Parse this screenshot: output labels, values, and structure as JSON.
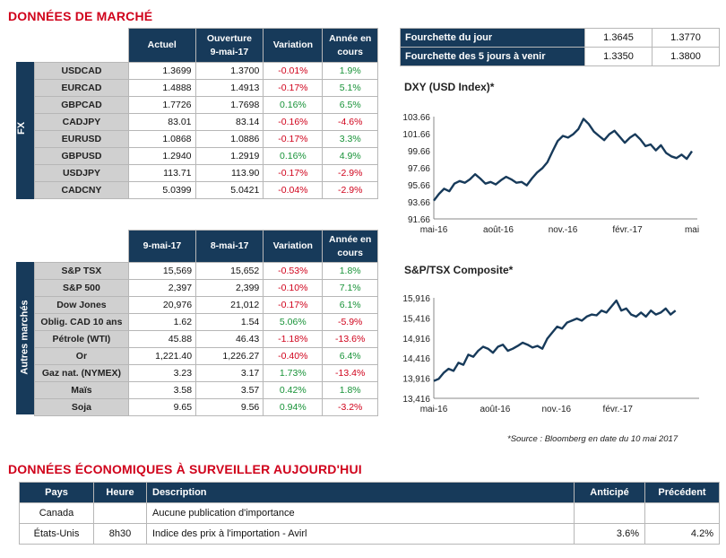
{
  "title_market": "DONNÉES DE MARCHÉ",
  "fx": {
    "side_label": "FX",
    "headers": [
      "Actuel",
      "Ouverture\n9-mai-17",
      "Variation",
      "Année en\ncours"
    ],
    "rows": [
      {
        "name": "USDCAD",
        "a": "1.3699",
        "b": "1.3700",
        "var": "-0.01%",
        "ytd": "1.9%",
        "var_sign": "neg",
        "ytd_sign": "pos"
      },
      {
        "name": "EURCAD",
        "a": "1.4888",
        "b": "1.4913",
        "var": "-0.17%",
        "ytd": "5.1%",
        "var_sign": "neg",
        "ytd_sign": "pos"
      },
      {
        "name": "GBPCAD",
        "a": "1.7726",
        "b": "1.7698",
        "var": "0.16%",
        "ytd": "6.5%",
        "var_sign": "pos",
        "ytd_sign": "pos"
      },
      {
        "name": "CADJPY",
        "a": "83.01",
        "b": "83.14",
        "var": "-0.16%",
        "ytd": "-4.6%",
        "var_sign": "neg",
        "ytd_sign": "neg"
      },
      {
        "name": "EURUSD",
        "a": "1.0868",
        "b": "1.0886",
        "var": "-0.17%",
        "ytd": "3.3%",
        "var_sign": "neg",
        "ytd_sign": "pos"
      },
      {
        "name": "GBPUSD",
        "a": "1.2940",
        "b": "1.2919",
        "var": "0.16%",
        "ytd": "4.9%",
        "var_sign": "pos",
        "ytd_sign": "pos"
      },
      {
        "name": "USDJPY",
        "a": "113.71",
        "b": "113.90",
        "var": "-0.17%",
        "ytd": "-2.9%",
        "var_sign": "neg",
        "ytd_sign": "neg"
      },
      {
        "name": "CADCNY",
        "a": "5.0399",
        "b": "5.0421",
        "var": "-0.04%",
        "ytd": "-2.9%",
        "var_sign": "neg",
        "ytd_sign": "neg"
      }
    ]
  },
  "other": {
    "side_label": "Autres marchés",
    "headers": [
      "9-mai-17",
      "8-mai-17",
      "Variation",
      "Année en\ncours"
    ],
    "rows": [
      {
        "name": "S&P TSX",
        "a": "15,569",
        "b": "15,652",
        "var": "-0.53%",
        "ytd": "1.8%",
        "var_sign": "neg",
        "ytd_sign": "pos"
      },
      {
        "name": "S&P 500",
        "a": "2,397",
        "b": "2,399",
        "var": "-0.10%",
        "ytd": "7.1%",
        "var_sign": "neg",
        "ytd_sign": "pos"
      },
      {
        "name": "Dow Jones",
        "a": "20,976",
        "b": "21,012",
        "var": "-0.17%",
        "ytd": "6.1%",
        "var_sign": "neg",
        "ytd_sign": "pos"
      },
      {
        "name": "Oblig. CAD 10 ans",
        "a": "1.62",
        "b": "1.54",
        "var": "5.06%",
        "ytd": "-5.9%",
        "var_sign": "pos",
        "ytd_sign": "neg"
      },
      {
        "name": "Pétrole (WTI)",
        "a": "45.88",
        "b": "46.43",
        "var": "-1.18%",
        "ytd": "-13.6%",
        "var_sign": "neg",
        "ytd_sign": "neg"
      },
      {
        "name": "Or",
        "a": "1,221.40",
        "b": "1,226.27",
        "var": "-0.40%",
        "ytd": "6.4%",
        "var_sign": "neg",
        "ytd_sign": "pos"
      },
      {
        "name": "Gaz nat. (NYMEX)",
        "a": "3.23",
        "b": "3.17",
        "var": "1.73%",
        "ytd": "-13.4%",
        "var_sign": "pos",
        "ytd_sign": "neg"
      },
      {
        "name": "Maïs",
        "a": "3.58",
        "b": "3.57",
        "var": "0.42%",
        "ytd": "1.8%",
        "var_sign": "pos",
        "ytd_sign": "pos"
      },
      {
        "name": "Soja",
        "a": "9.65",
        "b": "9.56",
        "var": "0.94%",
        "ytd": "-3.2%",
        "var_sign": "pos",
        "ytd_sign": "neg"
      }
    ]
  },
  "range": {
    "rows": [
      {
        "label": "Fourchette du jour",
        "low": "1.3645",
        "high": "1.3770"
      },
      {
        "label": "Fourchette des 5 jours à venir",
        "low": "1.3350",
        "high": "1.3800"
      }
    ]
  },
  "chart_data": [
    {
      "type": "line",
      "title": "DXY (USD Index)*",
      "yticks": [
        "103.66",
        "101.66",
        "99.66",
        "97.66",
        "95.66",
        "93.66",
        "91.66"
      ],
      "ylim": [
        91.66,
        103.66
      ],
      "xticks": [
        "mai-16",
        "août-16",
        "nov.-16",
        "févr.-17",
        "mai"
      ],
      "xlabel": "",
      "ylabel": "",
      "series": [
        {
          "values": [
            93.8,
            94.6,
            95.2,
            94.9,
            95.8,
            96.1,
            95.9,
            96.3,
            96.9,
            96.4,
            95.8,
            96.0,
            95.7,
            96.2,
            96.6,
            96.3,
            95.9,
            96.0,
            95.6,
            96.4,
            97.1,
            97.6,
            98.3,
            99.6,
            100.8,
            101.4,
            101.2,
            101.6,
            102.2,
            103.4,
            102.8,
            101.9,
            101.4,
            100.9,
            101.6,
            102.0,
            101.3,
            100.6,
            101.2,
            101.6,
            101.0,
            100.2,
            100.4,
            99.7,
            100.3,
            99.4,
            99.0,
            98.8,
            99.2,
            98.7,
            99.6
          ]
        }
      ],
      "line_color": "#173a5a"
    },
    {
      "type": "line",
      "title": "S&P/TSX Composite*",
      "yticks": [
        "15,916",
        "15,416",
        "14,916",
        "14,416",
        "13,916",
        "13,416"
      ],
      "ylim": [
        13416,
        15916
      ],
      "xticks": [
        "mai-16",
        "août-16",
        "nov.-16",
        "févr.-17"
      ],
      "xlabel": "",
      "ylabel": "",
      "series": [
        {
          "values": [
            13850,
            13900,
            14050,
            14150,
            14100,
            14300,
            14250,
            14500,
            14450,
            14600,
            14700,
            14650,
            14550,
            14700,
            14750,
            14600,
            14650,
            14720,
            14800,
            14750,
            14680,
            14720,
            14650,
            14900,
            15050,
            15200,
            15150,
            15300,
            15350,
            15400,
            15350,
            15450,
            15500,
            15480,
            15600,
            15550,
            15700,
            15850,
            15600,
            15650,
            15500,
            15450,
            15550,
            15450,
            15600,
            15500,
            15550,
            15650,
            15500,
            15600
          ]
        }
      ],
      "line_color": "#173a5a"
    }
  ],
  "source_note": "*Source : Bloomberg en date du  10 mai 2017",
  "title_eco": "DONNÉES ÉCONOMIQUES À SURVEILLER AUJOURD'HUI",
  "eco": {
    "headers": [
      "Pays",
      "Heure",
      "Description",
      "Anticipé",
      "Précédent"
    ],
    "rows": [
      {
        "pays": "Canada",
        "heure": "",
        "desc": "Aucune publication d'importance",
        "anticipe": "",
        "precedent": ""
      },
      {
        "pays": "États-Unis",
        "heure": "8h30",
        "desc": "Indice des prix à l'importation - Avirl",
        "anticipe": "3.6%",
        "precedent": "4.2%"
      }
    ]
  },
  "colors": {
    "header_bg": "#173a5a",
    "neg": "#d0021b",
    "pos": "#179237",
    "label_bg": "#d0d0d0",
    "title_red": "#d0021b"
  }
}
